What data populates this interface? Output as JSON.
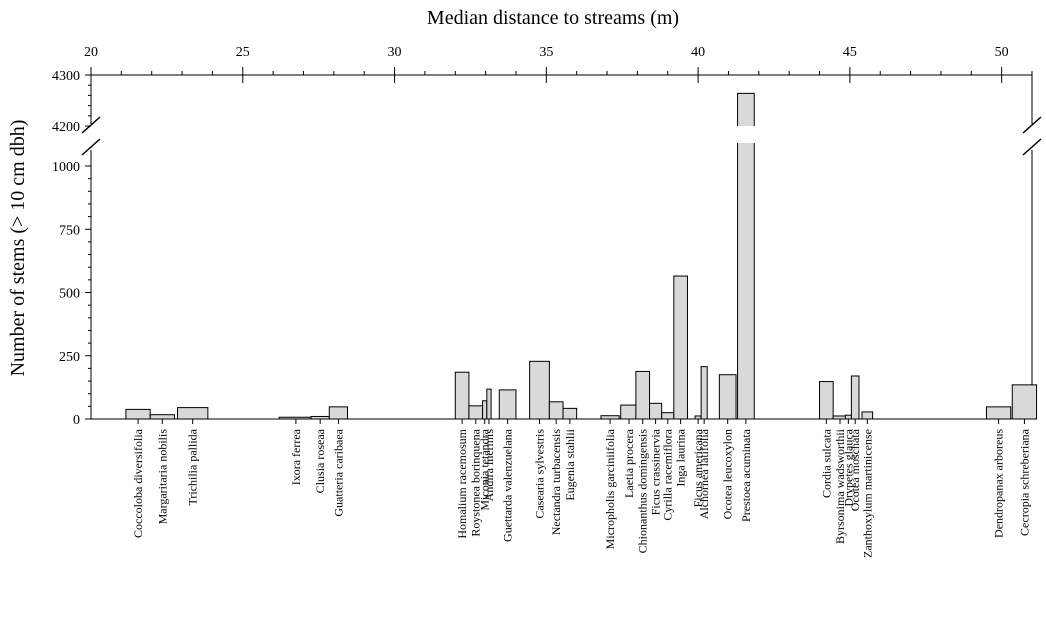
{
  "chart_data": {
    "type": "bar",
    "title": "",
    "xlabel": "Median distance to streams  (m)",
    "ylabel": "Number of stems (> 10 cm dbh)",
    "x_axis_position": "top",
    "xlim": [
      20,
      51
    ],
    "x_ticks": [
      "20",
      "25",
      "30",
      "35",
      "40",
      "45",
      "50"
    ],
    "y_ticks_lower": [
      "0",
      "250",
      "500",
      "750",
      "1000"
    ],
    "y_ticks_upper": [
      "4200",
      "4300"
    ],
    "ylim_lower": [
      0,
      1000
    ],
    "ylim_upper": [
      4170,
      4300
    ],
    "y_axis_break": true,
    "grid": false,
    "bar_color": "#d9d9d9",
    "edge_color": "#000000",
    "bars": [
      {
        "label": "Coccoloba diversifolia",
        "x": 21.15,
        "width": 0.8,
        "value": 38
      },
      {
        "label": "Margaritaria nobilis",
        "x": 21.95,
        "width": 0.8,
        "value": 17
      },
      {
        "label": "Trichilia pallida",
        "x": 22.85,
        "width": 1.0,
        "value": 45
      },
      {
        "label": "Ixora ferrea",
        "x": 26.2,
        "width": 1.1,
        "value": 7
      },
      {
        "label": "Clusia roseaa",
        "x": 27.25,
        "width": 0.6,
        "value": 10
      },
      {
        "label": "Guatteria caribaea",
        "x": 27.85,
        "width": 0.6,
        "value": 48
      },
      {
        "label": "Homalium racemosum",
        "x": 32.0,
        "width": 0.45,
        "value": 185
      },
      {
        "label": "Roystonea borinquena",
        "x": 32.45,
        "width": 0.45,
        "value": 52
      },
      {
        "label": "Miconia tetandra",
        "x": 32.9,
        "width": 0.14,
        "value": 72
      },
      {
        "label": "Andira inermis",
        "x": 33.04,
        "width": 0.14,
        "value": 118
      },
      {
        "label": "Guettarda valenzuelana",
        "x": 33.45,
        "width": 0.55,
        "value": 115
      },
      {
        "label": "Casearia sylvestris",
        "x": 34.45,
        "width": 0.65,
        "value": 228
      },
      {
        "label": "Nectandra turbacensis",
        "x": 35.1,
        "width": 0.45,
        "value": 68
      },
      {
        "label": "Eugenia stahlii",
        "x": 35.55,
        "width": 0.45,
        "value": 42
      },
      {
        "label": "Micropholis garciniifolia",
        "x": 36.8,
        "width": 0.6,
        "value": 13
      },
      {
        "label": "Laetia procera",
        "x": 37.45,
        "width": 0.55,
        "value": 55
      },
      {
        "label": "Chionanthus domingensis",
        "x": 37.95,
        "width": 0.45,
        "value": 188
      },
      {
        "label": "Ficus crassinervia",
        "x": 38.4,
        "width": 0.4,
        "value": 62
      },
      {
        "label": "Cyrilla racemiflora",
        "x": 38.8,
        "width": 0.4,
        "value": 25
      },
      {
        "label": "Inga laurina",
        "x": 39.2,
        "width": 0.45,
        "value": 565
      },
      {
        "label": "Ficus americana",
        "x": 39.9,
        "width": 0.2,
        "value": 12
      },
      {
        "label": "Alchornea latifolia",
        "x": 40.1,
        "width": 0.2,
        "value": 207
      },
      {
        "label": "Ocotea leucoxylon",
        "x": 40.7,
        "width": 0.55,
        "value": 175
      },
      {
        "label": "Prestoea acuminata",
        "x": 41.3,
        "width": 0.55,
        "value": 4264
      },
      {
        "label": "Cordia sulcata",
        "x": 44.0,
        "width": 0.45,
        "value": 148
      },
      {
        "label": "Byrsonima wadsworthii",
        "x": 44.45,
        "width": 0.45,
        "value": 12
      },
      {
        "label": "Drypetes glauca",
        "x": 44.85,
        "width": 0.2,
        "value": 15
      },
      {
        "label": "Ocotea moschata",
        "x": 45.05,
        "width": 0.25,
        "value": 170
      },
      {
        "label": "Zanthoxylum martinicense",
        "x": 45.4,
        "width": 0.35,
        "value": 28
      },
      {
        "label": "Dendropanax arboreus",
        "x": 49.5,
        "width": 0.8,
        "value": 48
      },
      {
        "label": "Cecropia schreberiana",
        "x": 50.35,
        "width": 0.8,
        "value": 135
      }
    ]
  }
}
